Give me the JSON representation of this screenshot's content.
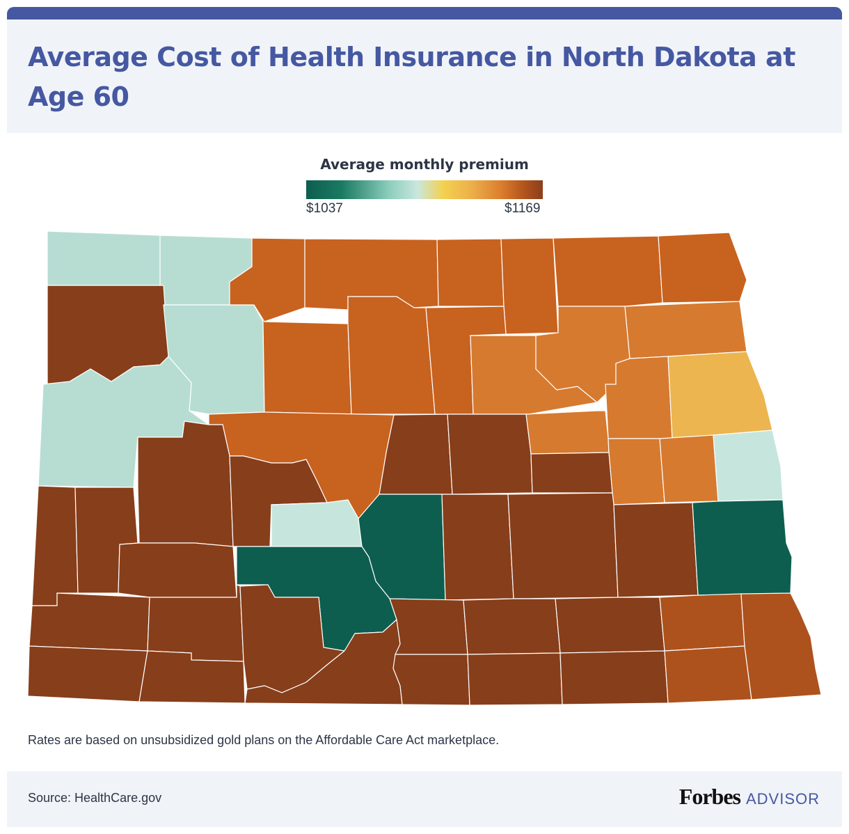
{
  "title": "Average Cost of Health Insurance in North Dakota at Age 60",
  "legend": {
    "title": "Average monthly premium",
    "min_label": "$1037",
    "max_label": "$1169",
    "min_value": 1037,
    "max_value": 1169
  },
  "colors": {
    "header_bg": "#f0f3f8",
    "accent": "#4558a1",
    "dark_green": "#0d5e4f",
    "light_teal": "#b7ddd3",
    "light_teal_2": "#c6e6dd",
    "yellow": "#ecb54f",
    "light_orange": "#d67a30",
    "orange": "#c8621f",
    "rust": "#ad521c",
    "brown": "#873e1a"
  },
  "chart_data": {
    "type": "choropleth",
    "region": "North Dakota",
    "color_scale": {
      "min": 1037,
      "max": 1169
    },
    "county_color_groups": [
      {
        "color": "#0d5e4f",
        "count": 3
      },
      {
        "color": "#b7ddd3",
        "count": 6
      },
      {
        "color": "#ecb54f",
        "count": 1
      },
      {
        "color": "#d67a30",
        "count": 6
      },
      {
        "color": "#c8621f",
        "count": 10
      },
      {
        "color": "#ad521c",
        "count": 4
      },
      {
        "color": "#873e1a",
        "count": 23
      }
    ]
  },
  "note": "Rates are based on unsubsidized gold plans on the Affordable Care Act marketplace.",
  "footer": {
    "source": "Source: HealthCare.gov",
    "logo_primary": "Forbes",
    "logo_secondary": "ADVISOR"
  }
}
